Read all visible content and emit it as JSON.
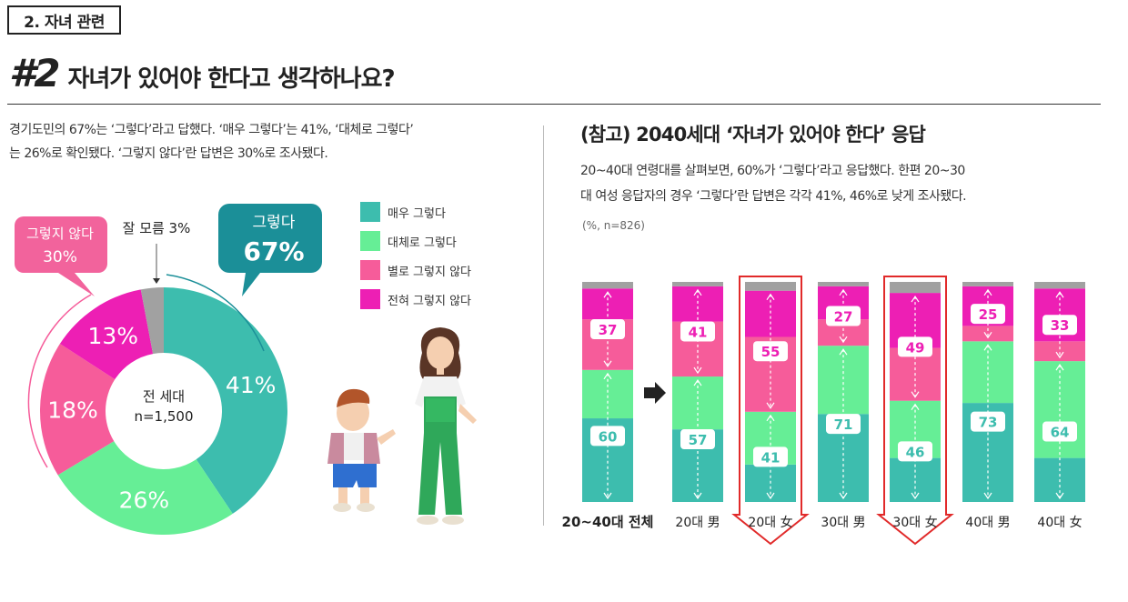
{
  "section_tag": "2. 자녀 관련",
  "headline": {
    "number": "#2",
    "question": "자녀가 있어야 한다고 생각하나요?"
  },
  "left_description": [
    "경기도민의 67%는 ‘그렇다’라고 답했다. ‘매우 그렇다’는 41%, ‘대체로 그렇다’",
    "는 26%로 확인됐다. ‘그렇지 않다’란 답변은 30%로 조사됐다."
  ],
  "right_title": "(참고) 2040세대 ‘자녀가 있어야 한다’ 응답",
  "right_description": [
    "20~40대 연령대를 살펴보면, 60%가 ‘그렇다’라고 응답했다. 한편 20~30",
    "대 여성 응답자의 경우 ‘그렇다’란 답변은 각각 41%, 46%로 낮게 조사됐다."
  ],
  "right_note": "(%, n=826)",
  "colors": {
    "very_yes": "#3dbdae",
    "mostly_yes": "#66ee96",
    "mostly_no": "#f65c9a",
    "strongly_no": "#ed1fb4",
    "dont_know": "#a1a1a1",
    "callout_yes": "#1b8f98",
    "callout_no": "#f2639c",
    "highlight": "#e12a2a"
  },
  "legend": [
    {
      "label": "매우 그렇다",
      "color": "#3dbdae"
    },
    {
      "label": "대체로 그렇다",
      "color": "#66ee96"
    },
    {
      "label": "별로 그렇지 않다",
      "color": "#f65c9a"
    },
    {
      "label": "전혀 그렇지 않다",
      "color": "#ed1fb4"
    }
  ],
  "chart_data": [
    {
      "type": "pie",
      "variant": "donut",
      "center_label": [
        "전 세대",
        "n=1,500"
      ],
      "slices": [
        {
          "name": "매우 그렇다",
          "value": 41,
          "label": "41%",
          "color": "#3dbdae"
        },
        {
          "name": "대체로 그렇다",
          "value": 26,
          "label": "26%",
          "color": "#66ee96"
        },
        {
          "name": "별로 그렇지 않다",
          "value": 18,
          "label": "18%",
          "color": "#f65c9a"
        },
        {
          "name": "전혀 그렇지 않다",
          "value": 13,
          "label": "13%",
          "color": "#ed1fb4"
        },
        {
          "name": "잘 모름",
          "value": 3,
          "label": "",
          "color": "#a1a1a1"
        }
      ],
      "callouts": {
        "yes": {
          "title": "그렇다",
          "value": "67%"
        },
        "no": {
          "title": "그렇지 않다",
          "value": "30%"
        },
        "dont_know": "잘 모름 3%"
      }
    },
    {
      "type": "bar",
      "variant": "stacked-100",
      "categories": [
        "20~40대 전체",
        "20대 男",
        "20대 女",
        "30대 男",
        "30대 女",
        "40대 男",
        "40대 女"
      ],
      "series": [
        {
          "name": "매우 그렇다",
          "color": "#3dbdae",
          "values": [
            38,
            33,
            17,
            40,
            20,
            45,
            20
          ]
        },
        {
          "name": "대체로 그렇다",
          "color": "#66ee96",
          "values": [
            22,
            24,
            24,
            31,
            26,
            28,
            44
          ]
        },
        {
          "name": "별로 그렇지 않다",
          "color": "#f65c9a",
          "values": [
            23,
            25,
            34,
            12,
            24,
            7,
            9
          ]
        },
        {
          "name": "전혀 그렇지 않다",
          "color": "#ed1fb4",
          "values": [
            14,
            16,
            21,
            15,
            25,
            18,
            24
          ]
        },
        {
          "name": "잘 모름",
          "color": "#a1a1a1",
          "values": [
            3,
            2,
            4,
            2,
            5,
            2,
            3
          ]
        }
      ],
      "yes_totals": [
        60,
        57,
        41,
        71,
        46,
        73,
        64
      ],
      "no_totals": [
        37,
        41,
        55,
        27,
        49,
        25,
        33
      ],
      "highlighted": [
        "20대 女",
        "30대 女"
      ]
    }
  ]
}
